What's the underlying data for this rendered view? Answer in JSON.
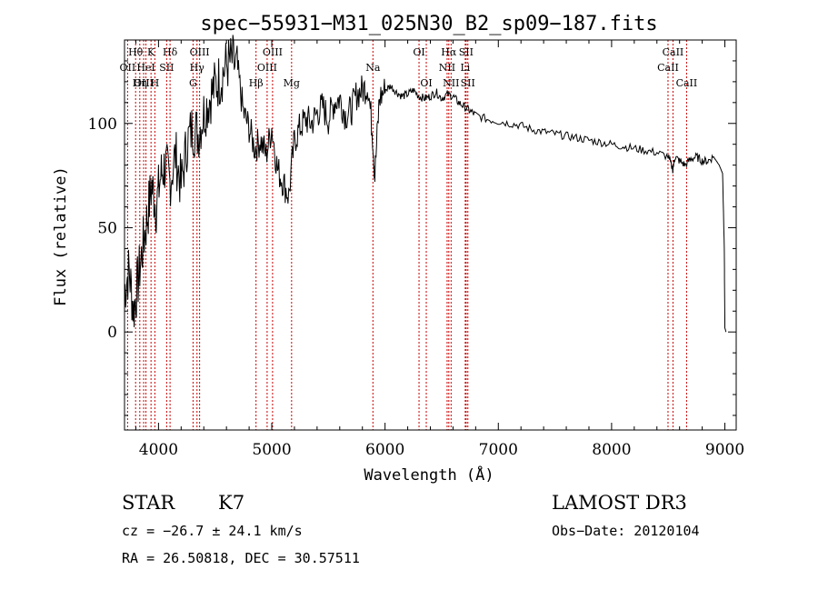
{
  "chart_data": {
    "type": "line",
    "title": "spec−55931−M31_025N30_B2_sp09−187.fits",
    "xlabel": "Wavelength (Å)",
    "ylabel": "Flux (relative)",
    "xlim": [
      3700,
      9100
    ],
    "ylim": [
      -47,
      140
    ],
    "xticks": [
      4000,
      5000,
      6000,
      7000,
      8000,
      9000
    ],
    "yticks": [
      0,
      50,
      100
    ],
    "grid": false,
    "series": [
      {
        "name": "spectrum",
        "x": [
          3700,
          3740,
          3780,
          3820,
          3860,
          3900,
          3940,
          3980,
          4020,
          4060,
          4100,
          4150,
          4200,
          4250,
          4300,
          4350,
          4400,
          4450,
          4500,
          4550,
          4600,
          4650,
          4700,
          4750,
          4800,
          4850,
          4900,
          4950,
          5000,
          5050,
          5100,
          5150,
          5200,
          5250,
          5300,
          5350,
          5400,
          5450,
          5500,
          5550,
          5600,
          5650,
          5700,
          5750,
          5800,
          5850,
          5890,
          5910,
          5950,
          6000,
          6050,
          6100,
          6150,
          6200,
          6250,
          6300,
          6350,
          6400,
          6450,
          6500,
          6550,
          6600,
          6650,
          6700,
          6750,
          6800,
          6900,
          7000,
          7100,
          7200,
          7300,
          7400,
          7500,
          7600,
          7700,
          7800,
          7900,
          8000,
          8100,
          8200,
          8300,
          8400,
          8500,
          8540,
          8560,
          8600,
          8650,
          8700,
          8750,
          8800,
          8850,
          8900,
          8950,
          8980,
          8995,
          9000,
          9010
        ],
        "y": [
          20,
          30,
          10,
          25,
          40,
          55,
          70,
          60,
          75,
          80,
          72,
          85,
          70,
          90,
          98,
          95,
          105,
          112,
          118,
          122,
          128,
          130,
          125,
          105,
          98,
          88,
          92,
          85,
          98,
          78,
          72,
          65,
          92,
          98,
          102,
          100,
          105,
          108,
          102,
          110,
          112,
          104,
          106,
          114,
          116,
          118,
          95,
          75,
          112,
          116,
          118,
          115,
          113,
          114,
          116,
          113,
          112,
          113,
          115,
          112,
          114,
          113,
          110,
          108,
          106,
          104,
          102,
          101,
          100,
          99,
          97,
          96,
          95,
          94,
          93,
          92,
          91,
          90,
          89,
          88,
          87,
          86,
          84,
          78,
          84,
          82,
          80,
          83,
          84,
          82,
          82,
          84,
          80,
          76,
          40,
          2,
          0
        ]
      }
    ],
    "line_markers": [
      {
        "label": "Hθ",
        "wavelength": 3798,
        "row": 1
      },
      {
        "label": "K",
        "wavelength": 3934,
        "row": 1
      },
      {
        "label": "Hδ",
        "wavelength": 4102,
        "row": 1
      },
      {
        "label": "OIII",
        "wavelength": 4363,
        "row": 1
      },
      {
        "label": "OIII",
        "wavelength": 5007,
        "row": 1
      },
      {
        "label": "OI",
        "wavelength": 6300,
        "row": 1
      },
      {
        "label": "Hα",
        "wavelength": 6563,
        "row": 1
      },
      {
        "label": "SII",
        "wavelength": 6716,
        "row": 1
      },
      {
        "label": "CaII",
        "wavelength": 8542,
        "row": 1
      },
      {
        "label": "OII",
        "wavelength": 3727,
        "row": 2
      },
      {
        "label": "HeI",
        "wavelength": 3889,
        "row": 2
      },
      {
        "label": "SII",
        "wavelength": 4072,
        "row": 2
      },
      {
        "label": "Hγ",
        "wavelength": 4340,
        "row": 2
      },
      {
        "label": "OIII",
        "wavelength": 4959,
        "row": 2
      },
      {
        "label": "Na",
        "wavelength": 5893,
        "row": 2
      },
      {
        "label": "NII",
        "wavelength": 6548,
        "row": 2
      },
      {
        "label": "Li",
        "wavelength": 6708,
        "row": 2
      },
      {
        "label": "CaII",
        "wavelength": 8498,
        "row": 2
      },
      {
        "label": "OIII",
        "wavelength": 3869,
        "row": 3
      },
      {
        "label": "Hη",
        "wavelength": 3835,
        "row": 3
      },
      {
        "label": "H",
        "wavelength": 3968,
        "row": 3
      },
      {
        "label": "G",
        "wavelength": 4305,
        "row": 3
      },
      {
        "label": "Hβ",
        "wavelength": 4861,
        "row": 3
      },
      {
        "label": "Mg",
        "wavelength": 5175,
        "row": 3
      },
      {
        "label": "OI",
        "wavelength": 6364,
        "row": 3
      },
      {
        "label": "NII",
        "wavelength": 6583,
        "row": 3
      },
      {
        "label": "SII",
        "wavelength": 6731,
        "row": 3
      },
      {
        "label": "CaII",
        "wavelength": 8662,
        "row": 3
      }
    ],
    "annotations": {
      "object_class": "STAR",
      "subclass": "K7",
      "redshift": "cz = −26.7 ± 24.1 km/s",
      "coords": "RA =  26.50818, DEC =  30.57511",
      "survey": "LAMOST DR3",
      "obs_date": "Obs−Date: 20120104"
    },
    "colors": {
      "spectrum": "#000000",
      "marker": "#cc0000",
      "frame": "#000000"
    }
  }
}
